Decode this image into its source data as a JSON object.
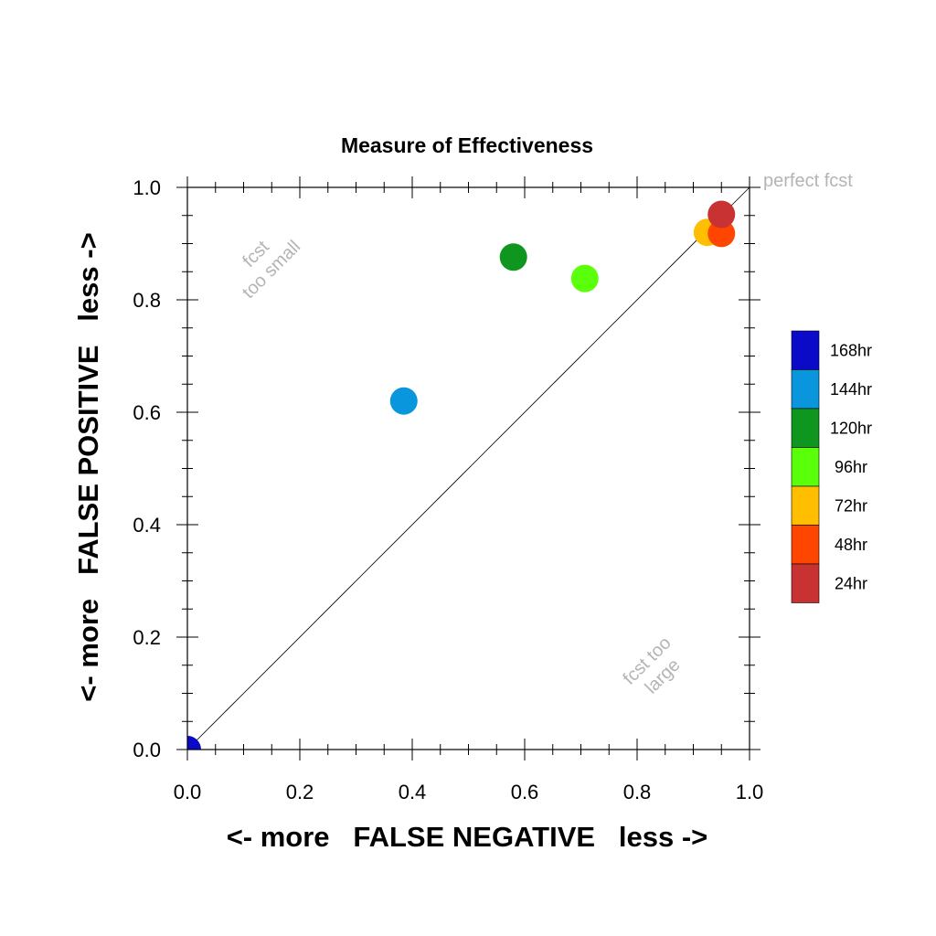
{
  "chart_data": {
    "type": "scatter",
    "title": "Measure of Effectiveness",
    "xlabel": "<- more   FALSE NEGATIVE   less ->",
    "ylabel": "<- more   FALSE POSITIVE   less ->",
    "xlim": [
      0,
      1
    ],
    "ylim": [
      0,
      1
    ],
    "xticks": [
      "0.0",
      "0.2",
      "0.4",
      "0.6",
      "0.8",
      "1.0"
    ],
    "yticks": [
      "0.0",
      "0.2",
      "0.4",
      "0.6",
      "0.8",
      "1.0"
    ],
    "diagonal_line": true,
    "grid": false,
    "legend_placement": "right",
    "annotations": {
      "perfect": "perfect fcst",
      "too_small": [
        "fcst",
        "too small"
      ],
      "too_large": [
        "fcst too",
        "large"
      ]
    },
    "series": [
      {
        "name": "168hr",
        "color": "#0a0ac8",
        "x": 0.0,
        "y": 0.0
      },
      {
        "name": "144hr",
        "color": "#0a96dc",
        "x": 0.385,
        "y": 0.62
      },
      {
        "name": "120hr",
        "color": "#0f961e",
        "x": 0.58,
        "y": 0.876
      },
      {
        "name": "96hr",
        "color": "#5aff0a",
        "x": 0.707,
        "y": 0.838
      },
      {
        "name": "72hr",
        "color": "#ffbe00",
        "x": 0.925,
        "y": 0.92
      },
      {
        "name": "48hr",
        "color": "#ff4600",
        "x": 0.95,
        "y": 0.918
      },
      {
        "name": "24hr",
        "color": "#c83232",
        "x": 0.95,
        "y": 0.952
      }
    ]
  }
}
